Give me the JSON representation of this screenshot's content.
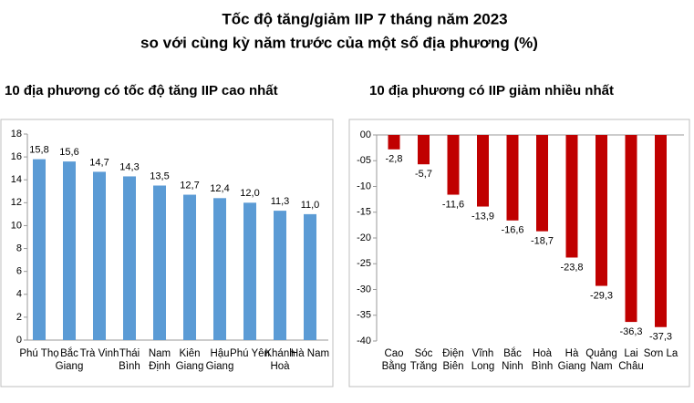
{
  "title": "Tốc độ tăng/giảm IIP 7 tháng năm 2023",
  "subtitle": "so với cùng kỳ năm trước của một số địa phương (%)",
  "chart_data": [
    {
      "type": "bar",
      "title": "10 địa phương có tốc độ tăng IIP cao nhất",
      "categories": [
        "Phú Thọ",
        "Bắc Giang",
        "Trà Vinh",
        "Thái Bình",
        "Nam Định",
        "Kiên Giang",
        "Hậu Giang",
        "Phú Yên",
        "Khánh Hoà",
        "Hà Nam"
      ],
      "values": [
        15.8,
        15.6,
        14.7,
        14.3,
        13.5,
        12.7,
        12.4,
        12.0,
        11.3,
        11.0
      ],
      "value_labels": [
        "15,8",
        "15,6",
        "14,7",
        "14,3",
        "13,5",
        "12,7",
        "12,4",
        "12,0",
        "11,3",
        "11,0"
      ],
      "color": "#5b9bd5",
      "ylim": [
        0,
        18
      ],
      "yticks": [
        0,
        2,
        4,
        6,
        8,
        10,
        12,
        14,
        16,
        18
      ]
    },
    {
      "type": "bar",
      "title": "10 địa phương có IIP giảm nhiều nhất",
      "categories": [
        "Cao Bằng",
        "Sóc Trăng",
        "Điện Biên",
        "Vĩnh Long",
        "Bắc Ninh",
        "Hoà Bình",
        "Hà Giang",
        "Quảng Nam",
        "Lai Châu",
        "Sơn La"
      ],
      "values": [
        -2.8,
        -5.7,
        -11.6,
        -13.9,
        -16.6,
        -18.7,
        -23.8,
        -29.3,
        -36.3,
        -37.3
      ],
      "value_labels": [
        "-2,8",
        "-5,7",
        "-11,6",
        "-13,9",
        "-16,6",
        "-18,7",
        "-23,8",
        "-29,3",
        "-36,3",
        "-37,3"
      ],
      "color": "#c00000",
      "ylim": [
        -40,
        0
      ],
      "yticks": [
        {
          "value": 0,
          "label": "00"
        },
        {
          "value": -5,
          "label": "-05"
        },
        -10,
        -15,
        -20,
        -25,
        -30,
        -35,
        -40
      ]
    }
  ]
}
